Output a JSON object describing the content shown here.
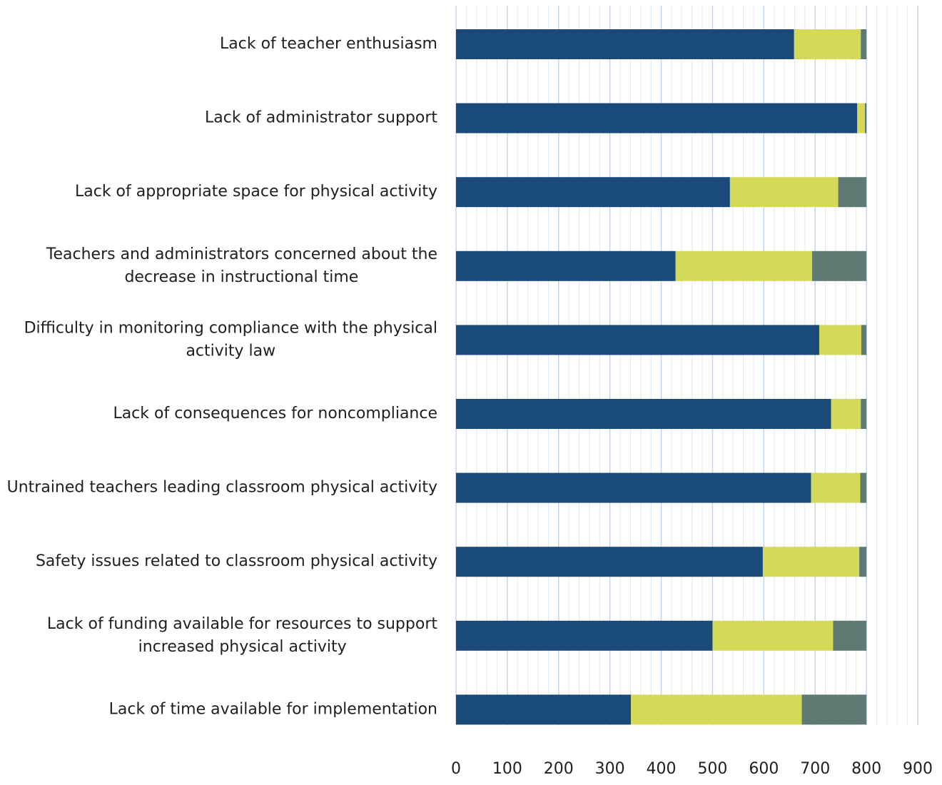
{
  "chart_data": {
    "type": "bar",
    "orientation": "horizontal",
    "stacked": true,
    "title": "",
    "xlabel": "",
    "ylabel": "",
    "xlim": [
      0,
      900
    ],
    "x_ticks": [
      0,
      100,
      200,
      300,
      400,
      500,
      600,
      700,
      800,
      900
    ],
    "grid": true,
    "legend": "none",
    "categories": [
      "Lack of teacher enthusiasm",
      "Lack of administrator support",
      "Lack of appropriate space for physical activity",
      "Teachers and administrators concerned about the decrease in instructional time",
      "Difficulty in monitoring compliance with the physical activity law",
      "Lack of consequences for noncompliance",
      "Untrained teachers leading classroom physical activity",
      "Safety issues related to classroom physical activity",
      "Lack of funding available for resources to support increased physical activity",
      "Lack of time available for implementation"
    ],
    "category_label_lines": [
      [
        "Lack of teacher enthusiasm"
      ],
      [
        "Lack of administrator support"
      ],
      [
        "Lack of appropriate space for physical activity"
      ],
      [
        "Teachers and administrators concerned about the",
        "decrease in instructional time"
      ],
      [
        "Difficulty in monitoring compliance with the physical",
        "activity law"
      ],
      [
        "Lack of consequences for noncompliance"
      ],
      [
        "Untrained teachers leading classroom physical activity"
      ],
      [
        "Safety issues related to classroom physical activity"
      ],
      [
        "Lack of funding available for resources to support",
        "increased physical activity"
      ],
      [
        "Lack of time available for implementation"
      ]
    ],
    "series": [
      {
        "color": "#1a4a7a",
        "values": [
          659,
          782,
          534,
          428,
          708,
          731,
          692,
          598,
          500,
          341
        ]
      },
      {
        "color": "#d4d957",
        "values": [
          130,
          15,
          211,
          266,
          82,
          58,
          96,
          188,
          235,
          333
        ]
      },
      {
        "color": "#5e7a73",
        "values": [
          11,
          3,
          55,
          106,
          10,
          11,
          12,
          14,
          65,
          126
        ]
      }
    ]
  }
}
